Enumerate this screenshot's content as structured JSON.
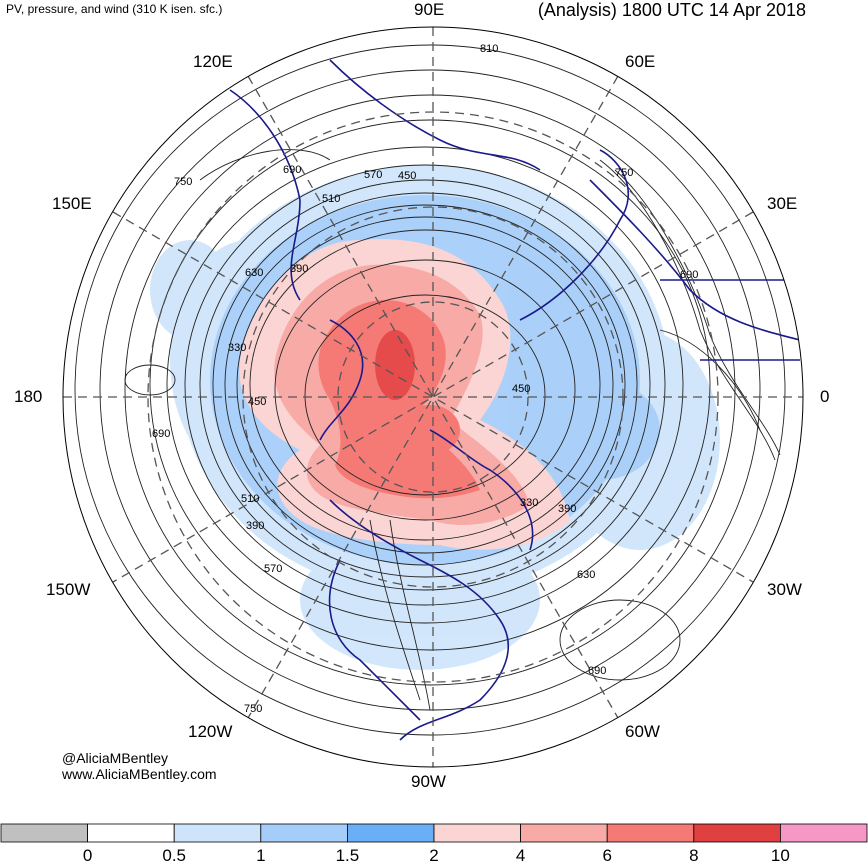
{
  "title_left": "PV, pressure, and wind (310 K isen. sfc.)",
  "title_right": "(Analysis) 1800 UTC 14 Apr 2018",
  "credit_handle": "@AliciaMBentley",
  "credit_url": "www.AliciaMBentley.com",
  "longitude_labels": {
    "lon_90e": "90E",
    "lon_60e": "60E",
    "lon_120e": "120E",
    "lon_30e": "30E",
    "lon_150e": "150E",
    "lon_0": "0",
    "lon_180": "180",
    "lon_30w": "30W",
    "lon_150w": "150W",
    "lon_60w": "60W",
    "lon_120w": "120W",
    "lon_90w": "90W"
  },
  "contour_labels": [
    "810",
    "750",
    "690",
    "630",
    "570",
    "510",
    "450",
    "390",
    "330"
  ],
  "colorbar": {
    "ticks": [
      "0",
      "0.5",
      "1",
      "1.5",
      "2",
      "4",
      "6",
      "8",
      "10"
    ],
    "colors": [
      "#c0c0c0",
      "#ffffff",
      "#cde4fb",
      "#a4cdf9",
      "#6aaef5",
      "#fad5d3",
      "#f8aaa7",
      "#f57a75",
      "#e04040",
      "#f598c6"
    ]
  }
}
